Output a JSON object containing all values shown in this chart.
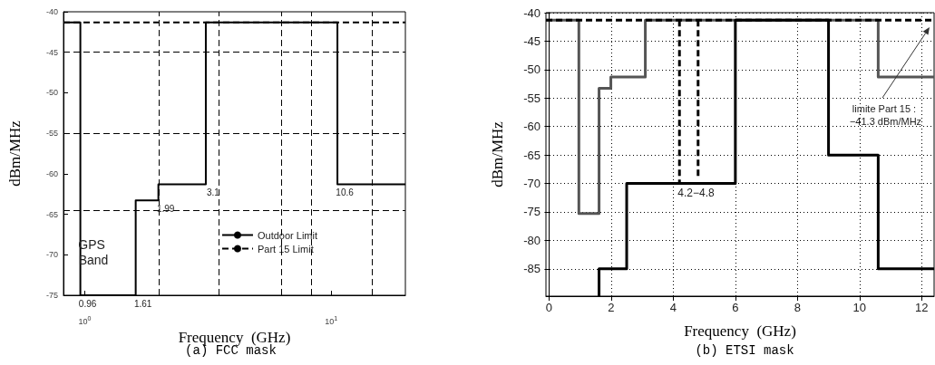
{
  "chart_data": [
    {
      "type": "line",
      "title": "(a) FCC mask",
      "xlabel": "Frequency  (GHz)",
      "ylabel": "dBm/MHz",
      "log": "x",
      "xlim": [
        0.82,
        20
      ],
      "xticks": [
        {
          "value": 1,
          "label": "10$^{0}$"
        },
        {
          "value": 10,
          "label": "10$^{1}$"
        }
      ],
      "ylim": [
        -75,
        -40
      ],
      "yticks": [
        -75,
        -70,
        -65,
        -60,
        -55,
        -50,
        -45,
        -40
      ],
      "grid": false,
      "legend": "bottom right",
      "series": [
        {
          "name": "Outdoor Limit",
          "color": "#000000",
          "x": [
            0.82,
            0.96,
            0.96,
            1.61,
            1.61,
            1.99,
            1.99,
            3.1,
            3.1,
            10.6,
            10.6,
            20
          ],
          "values": [
            -41.3,
            -41.3,
            -75,
            -75,
            -63.3,
            -63.3,
            -61.3,
            -61.3,
            -41.3,
            -41.3,
            -61.3,
            -61.3
          ]
        },
        {
          "name": "Part 15 Limit",
          "color": "#000000",
          "line_style": "dashed",
          "x": [
            0.82,
            20
          ],
          "values": [
            -41.3,
            -41.3
          ]
        }
      ],
      "ref_lines": [
        {
          "axis": "y",
          "value": -45,
          "color": "#000000",
          "line_style": "dashed"
        },
        {
          "axis": "y",
          "value": -55,
          "color": "#000000",
          "line_style": "dashed"
        },
        {
          "axis": "y",
          "value": -64.5,
          "color": "#000000",
          "line_style": "dashed"
        },
        {
          "axis": "x",
          "value": 2,
          "color": "#000000",
          "line_style": "dashed"
        },
        {
          "axis": "x",
          "value": 3.5,
          "color": "#000000",
          "line_style": "dashed"
        },
        {
          "axis": "x",
          "value": 6.3,
          "color": "#000000",
          "line_style": "dashed"
        },
        {
          "axis": "x",
          "value": 8.3,
          "color": "#000000",
          "line_style": "dashed"
        },
        {
          "axis": "x",
          "value": 14.7,
          "color": "#000000",
          "line_style": "dashed"
        }
      ],
      "annotations": [
        {
          "text": "0.96",
          "x": 0.96,
          "y": -75
        },
        {
          "text": "1.61",
          "x": 1.61,
          "y": -75
        },
        {
          "text": "1.99",
          "x": 1.99,
          "y": -63.3
        },
        {
          "text": "3.1",
          "x": 3.1,
          "y": -61.3
        },
        {
          "text": "10.6",
          "x": 10.6,
          "y": -61.3
        },
        "GPS Band"
      ]
    },
    {
      "type": "line",
      "title": "(b) ETSI mask",
      "xlabel": "Frequency  (GHz)",
      "ylabel": "dBm/MHz",
      "xlim": [
        -0.1,
        12.4
      ],
      "xticks": [
        0,
        2,
        4,
        6,
        8,
        10,
        12
      ],
      "ylim": [
        -89.8,
        -40
      ],
      "yticks": [
        -85,
        -80,
        -75,
        -70,
        -65,
        -60,
        -55,
        -50,
        -45,
        -40
      ],
      "grid": true,
      "series": [
        {
          "color": "#555555",
          "x": [
            -0.1,
            0.96,
            0.96,
            1.61,
            1.61,
            1.99,
            1.99,
            3.1,
            3.1,
            10.6,
            10.6,
            12.4
          ],
          "values": [
            -41.3,
            -41.3,
            -75.3,
            -75.3,
            -53.3,
            -53.3,
            -51.3,
            -51.3,
            -41.3,
            -41.3,
            -51.3,
            -51.3
          ]
        },
        {
          "color": "#000000",
          "x": [
            1.61,
            1.61,
            2.5,
            2.5,
            6,
            6,
            9,
            9,
            10.6,
            10.6,
            12.4
          ],
          "values": [
            -89.8,
            -85,
            -85,
            -70,
            -70,
            -41.3,
            -41.3,
            -65,
            -65,
            -85,
            -85
          ]
        },
        {
          "color": "#000000",
          "line_style": "dashed",
          "x": [
            -0.1,
            12.4
          ],
          "values": [
            -41.3,
            -41.3
          ]
        },
        {
          "color": "#000000",
          "line_style": "dashed",
          "x": [
            4.2,
            4.2
          ],
          "values": [
            -41.3,
            -70
          ]
        },
        {
          "color": "#000000",
          "line_style": "dashed",
          "x": [
            4.8,
            4.8
          ],
          "values": [
            -41.3,
            -69
          ]
        }
      ],
      "annotations": [
        {
          "text": "4.2−4.8",
          "x": 4.5,
          "y": -70
        },
        "limite Part 15 : −41.3 dBm/MHz"
      ]
    }
  ]
}
